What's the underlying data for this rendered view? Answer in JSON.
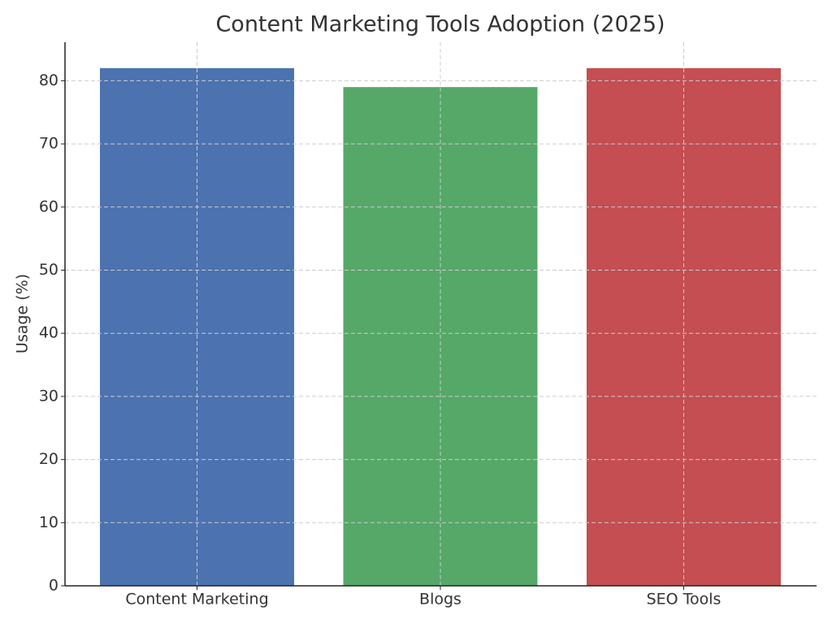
{
  "chart_data": {
    "type": "bar",
    "title": "Content Marketing Tools Adoption (2025)",
    "y_label": "Usage (%)",
    "categories": [
      "Content Marketing",
      "Blogs",
      "SEO Tools"
    ],
    "values": [
      82,
      79,
      82
    ],
    "colors": [
      "#4c72b0",
      "#55a868",
      "#c44e52"
    ],
    "ylim": [
      0,
      86.1
    ],
    "yticks": [
      0,
      10,
      20,
      30,
      40,
      50,
      60,
      70,
      80
    ],
    "grid": true
  }
}
